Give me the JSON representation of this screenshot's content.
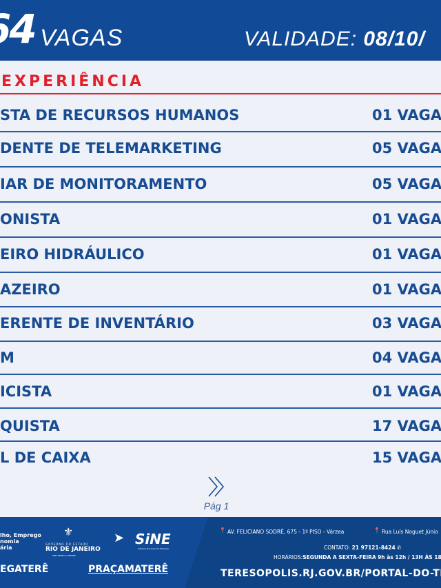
{
  "header": {
    "count": "64",
    "count_label": "VAGAS",
    "validity_label": "VALIDADE:",
    "validity_date": "08/10/"
  },
  "section": "EXPERIÊNCIA",
  "jobs": [
    {
      "title": "STA DE RECURSOS HUMANOS",
      "vagas": "01 VAGA"
    },
    {
      "title": "DENTE DE TELEMARKETING",
      "vagas": "05 VAGA"
    },
    {
      "title": "IAR DE MONITORAMENTO",
      "vagas": "05 VAGA"
    },
    {
      "title": "ONISTA",
      "vagas": "01 VAGA"
    },
    {
      "title": "EIRO HIDRÁULICO",
      "vagas": "01 VAGA"
    },
    {
      "title": "AZEIRO",
      "vagas": "01 VAGA"
    },
    {
      "title": "ERENTE DE INVENTÁRIO",
      "vagas": "03 VAGA"
    },
    {
      "title": "M",
      "vagas": "04 VAGA"
    },
    {
      "title": "ICISTA",
      "vagas": "01 VAGA"
    },
    {
      "title": "QUISTA",
      "vagas": "17 VAGA"
    },
    {
      "title": "L DE CAIXA",
      "vagas": "15 VAGA"
    }
  ],
  "pager": {
    "label": "Pág 1"
  },
  "footer": {
    "org_lines": [
      "lho, Emprego",
      "nomia",
      "ária"
    ],
    "gov_top": "GOVERNO DO ESTADO",
    "gov_name": "RIO DE JANEIRO",
    "gov_slogan": "SEM TEMPO A PERDER",
    "sine": "SiNE",
    "sine_sub": "Sistema Nacional de Emprego",
    "brand1": "EGATERÊ",
    "brand2": "PRAÇAMATERÊ",
    "address1": "AV. FELICIANO SODRÉ, 675 - 1º PISO - Várzea",
    "address2": "Rua Luís Noguet Júnio",
    "contact_label": "CONTATO:",
    "contact_phone": "21 97121-8424",
    "hours_label": "HORÁRIOS:",
    "hours_days": "SEGUNDA A SEXTA-FEIRA",
    "hours_time": "9h às 12h / 13H ÀS 18",
    "url": "TERESOPOLIS.RJ.GOV.BR/PORTAL-DO-TRAB"
  }
}
